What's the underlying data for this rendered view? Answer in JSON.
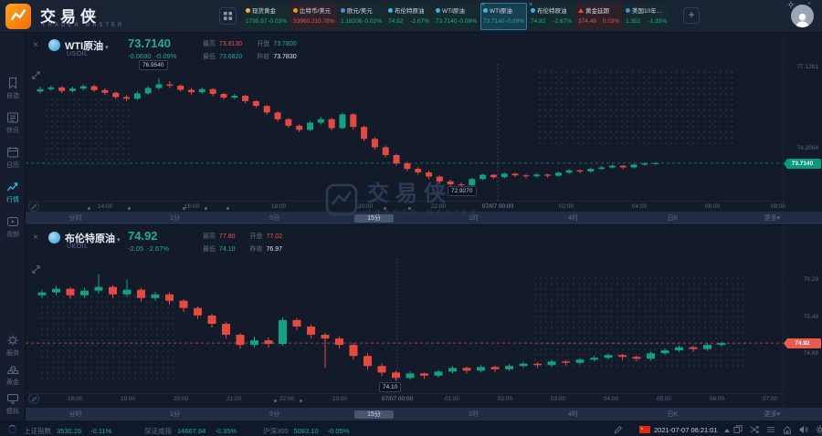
{
  "app": {
    "name": "交易侠",
    "tagline": "TRADER MASTER"
  },
  "icons": {
    "chevron_down": "▾",
    "close": "×",
    "plus": "+",
    "star": "★"
  },
  "colors": {
    "green": "#22ab94",
    "red": "#e0554d",
    "neutral": "#dfe6f0",
    "candle_up": "#0fa37f",
    "candle_down": "#e8493f",
    "tag_green": "#089981",
    "tag_red": "#eb5b4c",
    "accent": "#2bc1d4",
    "brand_orange": "#f7941d"
  },
  "topbar": {
    "tabs": [
      {
        "name": "现货黄金",
        "price": "1795.97",
        "change": "-0.03%",
        "dir": "down",
        "icon": "gold-coin",
        "icon_color": "#f4b63f",
        "active": false,
        "closable": false
      },
      {
        "name": "比特币/美元",
        "price": "33960.21",
        "change": "0.78%",
        "dir": "up",
        "icon": "bitcoin",
        "icon_color": "#f7931a",
        "active": false,
        "closable": false
      },
      {
        "name": "欧元/美元",
        "price": "1.18206",
        "change": "-0.02%",
        "dir": "down",
        "icon": "euro-flag",
        "icon_color": "#4f86e0",
        "active": false,
        "closable": false
      },
      {
        "name": "布伦特原油",
        "price": "74.92",
        "change": "-2.67%",
        "dir": "down",
        "icon": "oil",
        "icon_color": "#41b3e8",
        "active": false,
        "closable": false
      },
      {
        "name": "WTI原油",
        "price": "73.7140",
        "change": "-0.09%",
        "dir": "down",
        "icon": "oil",
        "icon_color": "#41b3e8",
        "active": false,
        "closable": false
      },
      {
        "name": "WTI原油",
        "price": "73.7140",
        "change": "-0.09%",
        "dir": "down",
        "icon": "oil",
        "icon_color": "#41b3e8",
        "active": true,
        "closable": true
      },
      {
        "name": "布伦特原油",
        "price": "74.92",
        "change": "-2.67%",
        "dir": "down",
        "icon": "oil",
        "icon_color": "#41b3e8",
        "active": false,
        "closable": true
      },
      {
        "name": "黄金延期",
        "price": "374.49",
        "change": "0.03%",
        "dir": "up",
        "icon": "gold-triangle",
        "icon_color": "#e8483c",
        "shape": "triangle",
        "active": false,
        "closable": false
      },
      {
        "name": "美国10年国债",
        "price": "1.352",
        "change": "-1.35%",
        "dir": "down",
        "icon": "bond",
        "icon_color": "#4f86e0",
        "active": false,
        "closable": false
      }
    ]
  },
  "sidebar": {
    "top": [
      {
        "label": "自选",
        "icon": "watchlist",
        "active": false
      },
      {
        "label": "快讯",
        "icon": "news",
        "active": false
      },
      {
        "label": "日历",
        "icon": "calendar",
        "active": false
      },
      {
        "label": "行情",
        "icon": "market-trend",
        "active": true
      },
      {
        "label": "视频",
        "icon": "video",
        "active": false
      }
    ],
    "bottom": [
      {
        "label": "服务",
        "icon": "service-gear",
        "active": false
      },
      {
        "label": "黄金",
        "icon": "gold-bars",
        "active": false
      },
      {
        "label": "模拟",
        "icon": "demo-monitor",
        "active": false
      }
    ]
  },
  "charts": [
    {
      "name": "WTI原油",
      "code": "USOIL",
      "price": "73.7140",
      "change": "-0.0690",
      "change_pct": "-0.09%",
      "price_tone": "green",
      "tag": "green",
      "tag_text": "73.7140",
      "stats": [
        {
          "label": "最高",
          "value": "73.8130",
          "tone": "red"
        },
        {
          "label": "开盘",
          "value": "73.7800",
          "tone": "green"
        },
        {
          "label": "最低",
          "value": "73.6820",
          "tone": "green"
        },
        {
          "label": "昨收",
          "value": "73.7830",
          "tone": "neutral"
        }
      ],
      "axis_labels": [
        "77.1291",
        "74.2069"
      ],
      "markers": [
        "76.9540",
        "72.9270"
      ],
      "time_ticks": [
        "14:00",
        "16:00",
        "18:00",
        "20:00",
        "22:00",
        "07/07 00:00",
        "02:00",
        "04:00",
        "06:00",
        "08:00"
      ],
      "periods": [
        "分时",
        "1分",
        "5分",
        "15分",
        "1时",
        "4时",
        "日K",
        "更多▾"
      ],
      "active_period_index": 3,
      "candles": [
        [
          76.1,
          76.26,
          76.04,
          76.18
        ],
        [
          76.18,
          76.3,
          76.12,
          76.24
        ],
        [
          76.24,
          76.28,
          76.05,
          76.12
        ],
        [
          76.12,
          76.26,
          76.07,
          76.2
        ],
        [
          76.2,
          76.34,
          76.14,
          76.28
        ],
        [
          76.28,
          76.32,
          76.08,
          76.15
        ],
        [
          76.15,
          76.2,
          75.98,
          76.06
        ],
        [
          76.06,
          76.1,
          75.86,
          75.92
        ],
        [
          75.92,
          75.98,
          75.78,
          75.86
        ],
        [
          75.86,
          76.1,
          75.82,
          76.04
        ],
        [
          76.04,
          76.28,
          76.0,
          76.22
        ],
        [
          76.22,
          76.55,
          76.16,
          76.34
        ],
        [
          76.34,
          76.44,
          76.22,
          76.3
        ],
        [
          76.3,
          76.34,
          76.1,
          76.16
        ],
        [
          76.16,
          76.22,
          76.0,
          76.08
        ],
        [
          76.08,
          76.24,
          76.03,
          76.18
        ],
        [
          76.18,
          76.21,
          75.95,
          76.02
        ],
        [
          76.02,
          76.06,
          75.83,
          75.9
        ],
        [
          75.9,
          76.02,
          75.85,
          75.96
        ],
        [
          75.96,
          75.99,
          75.71,
          75.78
        ],
        [
          75.78,
          75.82,
          75.55,
          75.62
        ],
        [
          75.62,
          75.66,
          75.33,
          75.4
        ],
        [
          75.4,
          75.44,
          75.1,
          75.18
        ],
        [
          75.18,
          75.22,
          74.89,
          74.96
        ],
        [
          74.96,
          75.02,
          74.74,
          74.82
        ],
        [
          74.82,
          75.12,
          74.78,
          75.06
        ],
        [
          75.06,
          75.26,
          75.0,
          75.18
        ],
        [
          75.18,
          75.22,
          74.8,
          74.88
        ],
        [
          74.88,
          75.4,
          74.84,
          75.34
        ],
        [
          75.34,
          75.38,
          74.84,
          74.92
        ],
        [
          74.92,
          74.96,
          74.44,
          74.52
        ],
        [
          74.52,
          74.58,
          74.16,
          74.24
        ],
        [
          74.24,
          74.3,
          73.9,
          73.98
        ],
        [
          73.98,
          74.02,
          73.62,
          73.7
        ],
        [
          73.7,
          73.76,
          73.44,
          73.52
        ],
        [
          73.52,
          73.58,
          73.32,
          73.4
        ],
        [
          73.4,
          73.45,
          73.18,
          73.26
        ],
        [
          73.26,
          73.3,
          73.02,
          73.1
        ],
        [
          73.1,
          73.16,
          72.95,
          73.0
        ],
        [
          73.0,
          73.06,
          72.93,
          72.97
        ],
        [
          72.97,
          73.22,
          72.95,
          73.18
        ],
        [
          73.18,
          73.36,
          73.14,
          73.32
        ],
        [
          73.32,
          73.35,
          73.18,
          73.24
        ],
        [
          73.24,
          73.4,
          73.2,
          73.36
        ],
        [
          73.36,
          73.39,
          73.24,
          73.3
        ],
        [
          73.3,
          73.34,
          73.2,
          73.27
        ],
        [
          73.27,
          73.38,
          73.23,
          73.33
        ],
        [
          73.33,
          73.36,
          73.22,
          73.29
        ],
        [
          73.29,
          73.43,
          73.25,
          73.39
        ],
        [
          73.39,
          73.51,
          73.35,
          73.47
        ],
        [
          73.47,
          73.5,
          73.37,
          73.43
        ],
        [
          73.43,
          73.56,
          73.39,
          73.52
        ],
        [
          73.52,
          73.61,
          73.48,
          73.57
        ],
        [
          73.57,
          73.66,
          73.53,
          73.62
        ],
        [
          73.62,
          73.65,
          73.51,
          73.57
        ],
        [
          73.57,
          73.7,
          73.53,
          73.66
        ],
        [
          73.66,
          73.74,
          73.62,
          73.7
        ],
        [
          73.7,
          73.75,
          73.66,
          73.71
        ]
      ]
    },
    {
      "name": "布伦特原油",
      "code": "UKOIL",
      "price": "74.92",
      "change": "-2.05",
      "change_pct": "-2.67%",
      "price_tone": "green",
      "tag": "red",
      "tag_text": "74.92",
      "stats": [
        {
          "label": "最高",
          "value": "77.80",
          "tone": "red"
        },
        {
          "label": "开盘",
          "value": "77.02",
          "tone": "red"
        },
        {
          "label": "最低",
          "value": "74.10",
          "tone": "green"
        },
        {
          "label": "昨收",
          "value": "76.97",
          "tone": "neutral"
        }
      ],
      "axis_labels": [
        "76.29",
        "75.49",
        "74.69"
      ],
      "markers": [
        "74.10"
      ],
      "time_ticks": [
        "18:00",
        "19:00",
        "20:00",
        "21:00",
        "22:00",
        "23:00",
        "07/07 00:00",
        "01:00",
        "02:00",
        "03:00",
        "04:00",
        "05:00",
        "06:00",
        "07:00"
      ],
      "periods": [
        "分时",
        "1分",
        "5分",
        "15分",
        "1时",
        "4时",
        "日K",
        "更多▾"
      ],
      "active_period_index": 3,
      "candles": [
        [
          75.96,
          76.08,
          75.9,
          76.02
        ],
        [
          76.02,
          76.16,
          75.96,
          76.1
        ],
        [
          76.1,
          76.14,
          75.88,
          75.96
        ],
        [
          75.96,
          76.12,
          75.9,
          76.06
        ],
        [
          76.06,
          76.42,
          76.0,
          76.14
        ],
        [
          76.14,
          76.18,
          75.9,
          75.98
        ],
        [
          75.98,
          76.3,
          75.92,
          76.08
        ],
        [
          76.08,
          76.12,
          75.82,
          75.9
        ],
        [
          75.9,
          76.04,
          75.84,
          75.98
        ],
        [
          75.98,
          76.02,
          75.76,
          75.84
        ],
        [
          75.84,
          75.88,
          75.6,
          75.68
        ],
        [
          75.68,
          75.72,
          75.44,
          75.52
        ],
        [
          75.52,
          75.56,
          75.26,
          75.34
        ],
        [
          75.34,
          75.38,
          75.02,
          75.1
        ],
        [
          75.1,
          75.14,
          74.8,
          74.88
        ],
        [
          74.88,
          75.06,
          74.82,
          74.98
        ],
        [
          74.98,
          75.04,
          74.82,
          74.9
        ],
        [
          74.9,
          75.48,
          74.86,
          75.42
        ],
        [
          75.42,
          75.46,
          75.2,
          75.28
        ],
        [
          75.28,
          75.32,
          75.02,
          75.1
        ],
        [
          75.1,
          75.14,
          74.38,
          75.02
        ],
        [
          75.02,
          75.06,
          74.8,
          74.88
        ],
        [
          74.88,
          74.92,
          74.56,
          74.64
        ],
        [
          74.64,
          74.7,
          74.34,
          74.42
        ],
        [
          74.42,
          74.48,
          74.2,
          74.28
        ],
        [
          74.28,
          74.32,
          74.1,
          74.16
        ],
        [
          74.16,
          74.3,
          74.12,
          74.26
        ],
        [
          74.26,
          74.28,
          74.14,
          74.21
        ],
        [
          74.21,
          74.34,
          74.17,
          74.3
        ],
        [
          74.3,
          74.42,
          74.26,
          74.38
        ],
        [
          74.38,
          74.41,
          74.26,
          74.32
        ],
        [
          74.32,
          74.44,
          74.28,
          74.4
        ],
        [
          74.4,
          74.43,
          74.29,
          74.35
        ],
        [
          74.35,
          74.46,
          74.31,
          74.42
        ],
        [
          74.42,
          74.51,
          74.38,
          74.47
        ],
        [
          74.47,
          74.5,
          74.38,
          74.44
        ],
        [
          74.44,
          74.56,
          74.4,
          74.52
        ],
        [
          74.52,
          74.55,
          74.43,
          74.49
        ],
        [
          74.49,
          74.6,
          74.45,
          74.56
        ],
        [
          74.56,
          74.64,
          74.52,
          74.6
        ],
        [
          74.6,
          74.7,
          74.56,
          74.66
        ],
        [
          74.66,
          74.69,
          74.56,
          74.62
        ],
        [
          74.62,
          74.65,
          74.52,
          74.58
        ],
        [
          74.58,
          74.74,
          74.54,
          74.7
        ],
        [
          74.7,
          74.8,
          74.66,
          74.76
        ],
        [
          74.76,
          74.87,
          74.72,
          74.83
        ],
        [
          74.83,
          74.86,
          74.73,
          74.79
        ],
        [
          74.79,
          74.92,
          74.75,
          74.88
        ],
        [
          74.88,
          74.95,
          74.84,
          74.92
        ]
      ]
    }
  ],
  "watermark": {
    "name": "交易侠",
    "tagline": "TRADER MASTER"
  },
  "statusbar": {
    "indices": [
      {
        "name": "上证指数",
        "value": "3530.26",
        "change": "-0.11%"
      },
      {
        "name": "深证成指",
        "value": "14667.64",
        "change": "-0.35%"
      },
      {
        "name": "沪深300",
        "value": "5083.10",
        "change": "-0.05%"
      }
    ],
    "datetime": "2021-07-07 06:21:01"
  }
}
